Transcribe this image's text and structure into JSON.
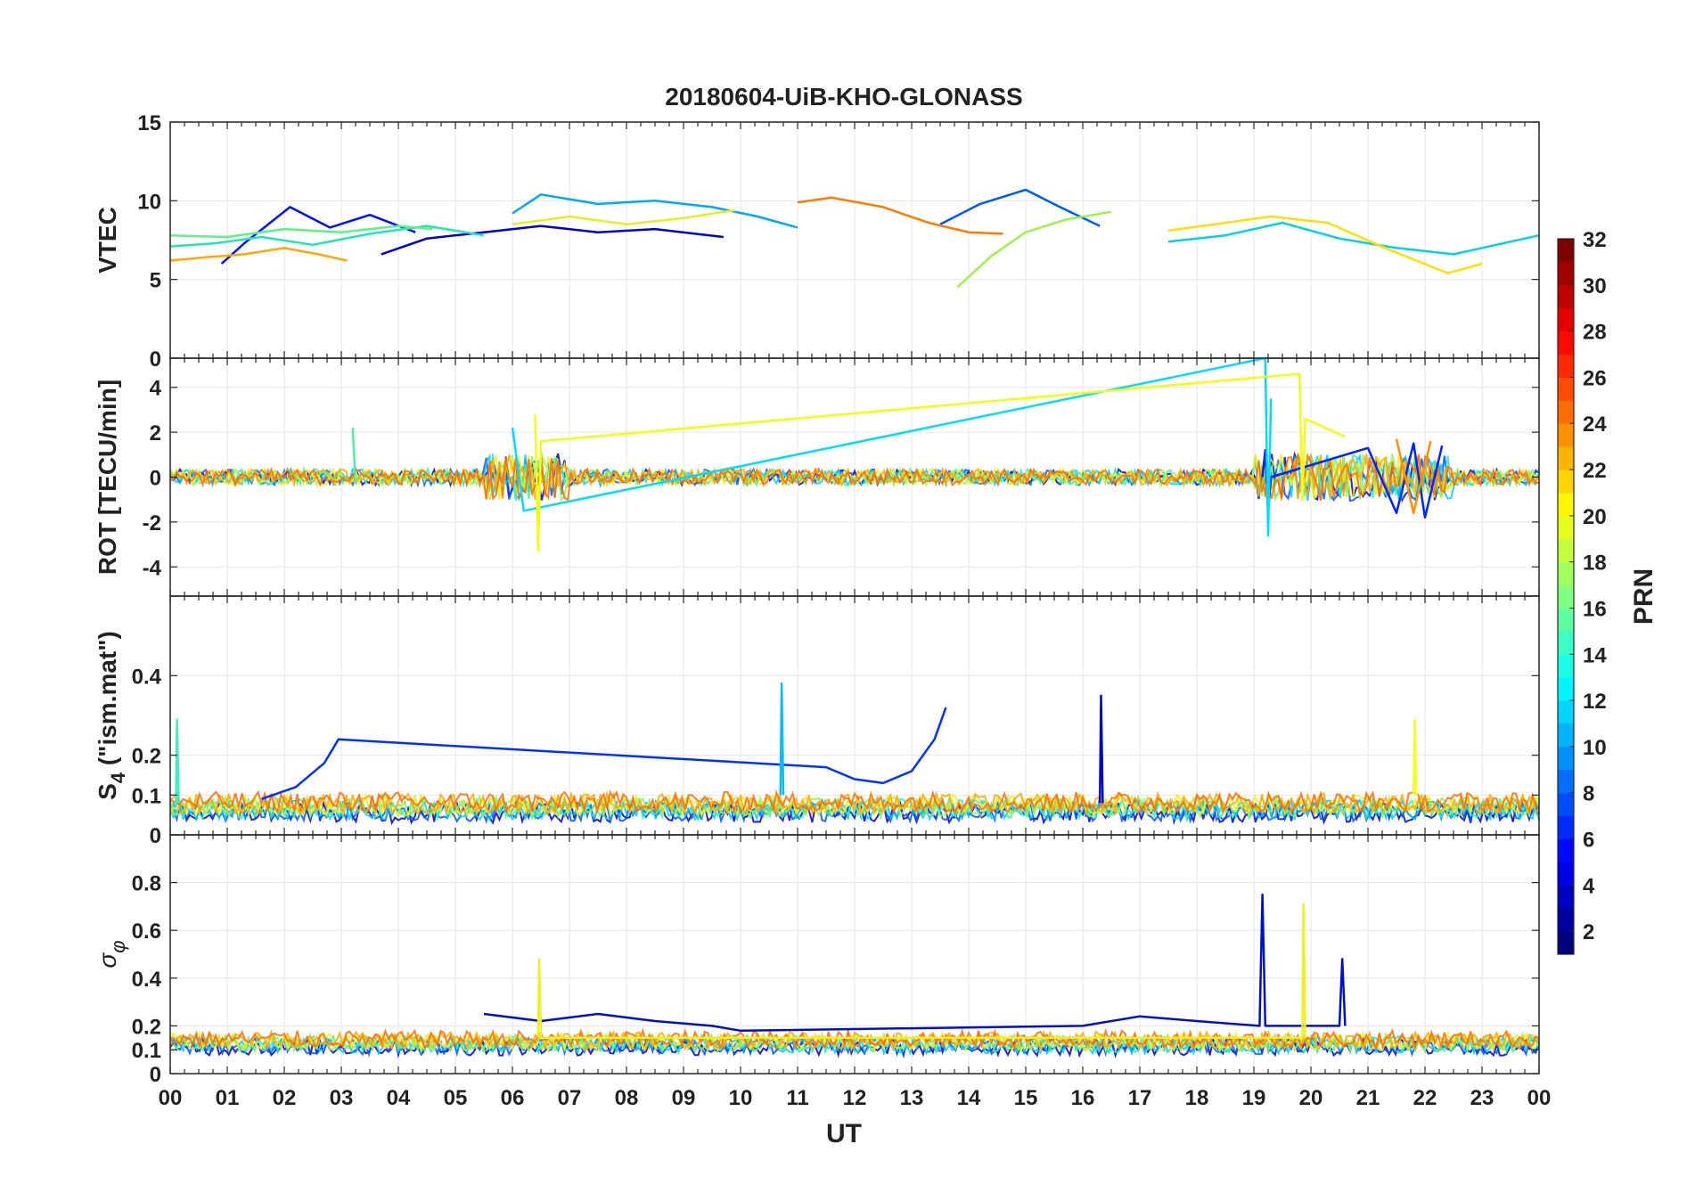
{
  "chart_data": {
    "type": "line",
    "title": "20180604-UiB-KHO-GLONASS",
    "xlabel": "UT",
    "x_tick_labels": [
      "00",
      "01",
      "02",
      "03",
      "04",
      "05",
      "06",
      "07",
      "08",
      "09",
      "10",
      "11",
      "12",
      "13",
      "14",
      "15",
      "16",
      "17",
      "18",
      "19",
      "20",
      "21",
      "22",
      "23",
      "00"
    ],
    "xlim": [
      0,
      24
    ],
    "panels": [
      {
        "id": "vtec",
        "ylabel": "VTEC",
        "ylim": [
          0,
          15
        ],
        "yticks": [
          0,
          5,
          10,
          15
        ],
        "ytick_labels": [
          "0",
          "5",
          "10",
          "15"
        ],
        "series": [
          {
            "name": "PRN 2",
            "prn": 2,
            "color": "#0000c8",
            "x": [
              3.7,
              4.5,
              5.5,
              6.5,
              7.5,
              8.5,
              9.7
            ],
            "y": [
              6.6,
              7.6,
              8.0,
              8.4,
              8.0,
              8.2,
              7.7
            ]
          },
          {
            "name": "PRN 4",
            "prn": 4,
            "color": "#0010ff",
            "x": [
              0.9,
              1.3,
              2.1,
              2.8,
              3.5,
              4.3
            ],
            "y": [
              6.0,
              7.3,
              9.6,
              8.3,
              9.1,
              8.0
            ]
          },
          {
            "name": "PRN 6",
            "prn": 6,
            "color": "#005aff",
            "x": [
              13.5,
              14.2,
              15.0,
              15.6,
              16.3
            ],
            "y": [
              8.5,
              9.8,
              10.7,
              9.6,
              8.4
            ]
          },
          {
            "name": "PRN 9",
            "prn": 9,
            "color": "#00a8ff",
            "x": [
              6.0,
              6.5,
              7.5,
              8.5,
              9.5,
              10.3,
              11.0
            ],
            "y": [
              9.2,
              10.4,
              9.8,
              10.0,
              9.6,
              9.0,
              8.3
            ]
          },
          {
            "name": "PRN 11",
            "prn": 11,
            "color": "#00d2e8",
            "x": [
              17.5,
              18.5,
              19.5,
              20.5,
              21.5,
              22.5,
              24.0
            ],
            "y": [
              7.4,
              7.8,
              8.6,
              7.6,
              7.0,
              6.6,
              7.8
            ]
          },
          {
            "name": "PRN 13",
            "prn": 13,
            "color": "#22e6b4",
            "x": [
              0.0,
              0.8,
              1.6,
              2.5,
              3.5,
              4.5,
              5.5
            ],
            "y": [
              7.1,
              7.3,
              7.7,
              7.2,
              7.9,
              8.4,
              7.8
            ]
          },
          {
            "name": "PRN 14",
            "prn": 14,
            "color": "#5cf28a",
            "x": [
              0.0,
              1.0,
              2.0,
              3.0,
              4.0,
              4.6
            ],
            "y": [
              7.8,
              7.7,
              8.2,
              8.0,
              8.4,
              8.2
            ]
          },
          {
            "name": "PRN 17",
            "prn": 17,
            "color": "#a0f050",
            "x": [
              13.8,
              14.4,
              15.0,
              15.7,
              16.5
            ],
            "y": [
              4.5,
              6.5,
              8.0,
              8.8,
              9.3
            ]
          },
          {
            "name": "PRN 19",
            "prn": 19,
            "color": "#e6f020",
            "x": [
              6.0,
              7.0,
              8.0,
              9.0,
              9.9
            ],
            "y": [
              8.5,
              9.0,
              8.5,
              8.9,
              9.4
            ]
          },
          {
            "name": "PRN 20",
            "prn": 20,
            "color": "#ffe000",
            "x": [
              17.5,
              18.5,
              19.3,
              20.3,
              21.3,
              22.4,
              23.0
            ],
            "y": [
              8.1,
              8.6,
              9.0,
              8.6,
              7.0,
              5.4,
              6.0
            ]
          },
          {
            "name": "PRN 22",
            "prn": 22,
            "color": "#ffa800",
            "x": [
              0.0,
              0.6,
              1.3,
              2.0,
              2.6,
              3.1
            ],
            "y": [
              6.2,
              6.4,
              6.6,
              7.0,
              6.6,
              6.2
            ]
          },
          {
            "name": "PRN 24",
            "prn": 24,
            "color": "#ff7a00",
            "x": [
              11.0,
              11.6,
              12.5,
              13.3,
              14.0,
              14.6
            ],
            "y": [
              9.9,
              10.2,
              9.6,
              8.6,
              8.0,
              7.9
            ]
          }
        ]
      },
      {
        "id": "rot",
        "ylabel": "ROT [TECU/min]",
        "ylim": [
          -5.3,
          5.3
        ],
        "yticks": [
          -4,
          -2,
          0,
          2,
          4
        ],
        "ytick_labels": [
          "-4",
          "-2",
          "0",
          "2",
          "4"
        ],
        "series": [
          {
            "name": "PRN 3",
            "prn": 3,
            "color": "#0024ff",
            "x": [
              19.15,
              19.2,
              19.25,
              19.3,
              21.0,
              21.5,
              21.8,
              22.0,
              22.3
            ],
            "y": [
              0,
              1.2,
              -1.5,
              0,
              1.3,
              -1.6,
              1.5,
              -1.8,
              1.4
            ]
          },
          {
            "name": "PRN 11",
            "prn": 11,
            "color": "#00dcff",
            "x": [
              6.0,
              6.2,
              19.2,
              19.25,
              19.3
            ],
            "y": [
              2.2,
              -1.5,
              5.3,
              -2.6,
              3.5
            ]
          },
          {
            "name": "PRN 15",
            "prn": 15,
            "color": "#50f0a0",
            "x": [
              3.2,
              3.25
            ],
            "y": [
              2.2,
              -0.3
            ]
          },
          {
            "name": "PRN 19",
            "prn": 19,
            "color": "#f0ff10",
            "x": [
              6.4,
              6.45,
              6.5,
              19.8,
              19.85,
              19.9,
              20.6
            ],
            "y": [
              2.8,
              -3.3,
              1.6,
              4.6,
              -1.0,
              2.6,
              1.8
            ]
          },
          {
            "name": "PRN 23",
            "prn": 23,
            "color": "#ff9000",
            "x": [
              21.5,
              21.8,
              22.1
            ],
            "y": [
              1.7,
              -1.6,
              1.6
            ]
          }
        ]
      },
      {
        "id": "s4",
        "ylabel": "S4 (\"ism.mat\")",
        "ylabel_main": "S",
        "ylabel_sub": "4",
        "ylabel_rest": " (\"ism.mat\")",
        "ylim": [
          0,
          0.6
        ],
        "yticks": [
          0,
          0.1,
          0.2,
          0.4
        ],
        "ytick_labels": [
          "0",
          "0.1",
          "0.2",
          "0.4"
        ],
        "series": [
          {
            "name": "PRN 4",
            "prn": 4,
            "color": "#0032ff",
            "x": [
              1.6,
              2.2,
              2.7,
              2.95,
              11.5,
              12.0,
              12.5,
              13.0,
              13.4,
              13.6
            ],
            "y": [
              0.09,
              0.12,
              0.18,
              0.24,
              0.17,
              0.14,
              0.13,
              0.16,
              0.24,
              0.32
            ]
          },
          {
            "name": "PRN 10",
            "prn": 10,
            "color": "#00beff",
            "x": [
              10.7,
              10.72,
              10.75
            ],
            "y": [
              0.1,
              0.38,
              0.1
            ]
          },
          {
            "name": "PRN 2",
            "prn": 2,
            "color": "#0008c0",
            "x": [
              16.3,
              16.32,
              16.35
            ],
            "y": [
              0.08,
              0.35,
              0.08
            ]
          },
          {
            "name": "PRN 20",
            "prn": 20,
            "color": "#f5ff20",
            "x": [
              21.8,
              21.82,
              21.85
            ],
            "y": [
              0.1,
              0.29,
              0.1
            ]
          },
          {
            "name": "PRN 13",
            "prn": 13,
            "color": "#3cf0c0",
            "x": [
              0.1,
              0.12,
              0.15
            ],
            "y": [
              0.08,
              0.29,
              0.08
            ]
          }
        ]
      },
      {
        "id": "sigma_phi",
        "ylabel": "σφ",
        "ylabel_main": "σ",
        "ylabel_sub": "φ",
        "ylim": [
          0,
          1
        ],
        "yticks": [
          0,
          0.1,
          0.2,
          0.4,
          0.6,
          0.8
        ],
        "ytick_labels": [
          "0",
          "0.1",
          "0.2",
          "0.4",
          "0.6",
          "0.8"
        ],
        "series": [
          {
            "name": "PRN 2",
            "prn": 2,
            "color": "#0010c8",
            "x": [
              5.5,
              6.5,
              7.5,
              8.5,
              9.5,
              10.0,
              16.0,
              17.0,
              18.0,
              19.1,
              19.15,
              19.2,
              20.5,
              20.55,
              20.6
            ],
            "y": [
              0.25,
              0.22,
              0.25,
              0.22,
              0.2,
              0.18,
              0.2,
              0.24,
              0.22,
              0.2,
              0.75,
              0.2,
              0.2,
              0.48,
              0.2
            ]
          },
          {
            "name": "PRN 19",
            "prn": 19,
            "color": "#f0f020",
            "x": [
              6.45,
              6.47,
              6.5,
              19.85,
              19.87,
              19.9
            ],
            "y": [
              0.15,
              0.48,
              0.15,
              0.15,
              0.71,
              0.15
            ]
          }
        ]
      }
    ],
    "colorbar": {
      "label": "PRN",
      "range": [
        1,
        32
      ],
      "ticks": [
        2,
        4,
        6,
        8,
        10,
        12,
        14,
        16,
        18,
        20,
        22,
        24,
        26,
        28,
        30,
        32
      ],
      "tick_labels": [
        "2",
        "4",
        "6",
        "8",
        "10",
        "12",
        "14",
        "16",
        "18",
        "20",
        "22",
        "24",
        "26",
        "28",
        "30",
        "32"
      ],
      "colormap": "jet"
    }
  }
}
